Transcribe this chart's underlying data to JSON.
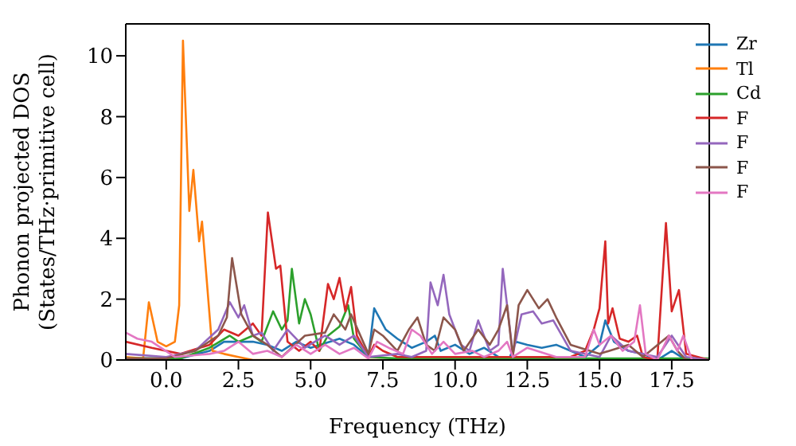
{
  "chart_data": {
    "type": "line",
    "xlabel": "Frequency (THz)",
    "ylabel": "Phonon projected DOS\n(States/THz·primitive cell)",
    "xlim": [
      -1.4,
      18.8
    ],
    "ylim": [
      0,
      11.05
    ],
    "xticks": [
      {
        "value": 0,
        "label": "0.0"
      },
      {
        "value": 2.5,
        "label": "2.5"
      },
      {
        "value": 5,
        "label": "5.0"
      },
      {
        "value": 7.5,
        "label": "7.5"
      },
      {
        "value": 10,
        "label": "10.0"
      },
      {
        "value": 12.5,
        "label": "12.5"
      },
      {
        "value": 15,
        "label": "15.0"
      },
      {
        "value": 17.5,
        "label": "17.5"
      }
    ],
    "yticks": [
      0,
      2,
      4,
      6,
      8,
      10
    ],
    "legend": "top right",
    "marker": "none",
    "line_style": "solid",
    "series": [
      {
        "name": "Zr",
        "color": "#1f77b4",
        "x": [
          -1.4,
          0.5,
          1.5,
          2,
          3,
          3.5,
          4,
          4.5,
          5,
          6,
          6.5,
          7,
          7.2,
          7.6,
          8,
          8.5,
          9,
          9.3,
          9.5,
          10,
          10.5,
          11,
          11.5,
          11.9,
          12.1,
          12.5,
          13,
          13.5,
          14,
          14.5,
          15,
          15.2,
          15.5,
          16,
          16.5,
          17,
          17.5,
          18,
          18.8
        ],
        "values": [
          0.05,
          0.05,
          0.3,
          0.6,
          0.6,
          0.5,
          0.3,
          0.6,
          0.4,
          0.7,
          0.5,
          0.1,
          1.7,
          1.0,
          0.7,
          0.4,
          0.6,
          0.8,
          0.3,
          0.5,
          0.2,
          0.4,
          0.1,
          0.1,
          0.6,
          0.5,
          0.4,
          0.5,
          0.3,
          0.1,
          0.5,
          1.3,
          0.6,
          0.3,
          0.2,
          0,
          0.3,
          0,
          0
        ]
      },
      {
        "name": "Tl",
        "color": "#ff7f0e",
        "x": [
          -1.4,
          -0.8,
          -0.6,
          -0.3,
          0,
          0.3,
          0.45,
          0.58,
          0.8,
          0.94,
          1.14,
          1.24,
          1.6,
          2,
          2.5,
          3,
          18.8
        ],
        "values": [
          0.1,
          0.05,
          1.9,
          0.6,
          0.45,
          0.6,
          1.8,
          10.5,
          4.9,
          6.25,
          3.9,
          4.55,
          0.3,
          0.2,
          0.1,
          0,
          0
        ]
      },
      {
        "name": "Cd",
        "color": "#2ca02c",
        "x": [
          -1.4,
          0.5,
          1.5,
          2.2,
          2.5,
          3,
          3.3,
          3.7,
          4,
          4.2,
          4.35,
          4.6,
          4.8,
          5,
          5.3,
          5.6,
          6,
          6.3,
          6.5,
          7,
          8,
          18.8
        ],
        "values": [
          0.05,
          0.05,
          0.4,
          0.8,
          0.6,
          0.8,
          0.6,
          1.6,
          1.0,
          1.3,
          3.0,
          1.2,
          2.0,
          1.5,
          0.3,
          0.8,
          1.1,
          1.8,
          0.7,
          0.1,
          0.05,
          0.05
        ]
      },
      {
        "name": "F",
        "color": "#d62728",
        "x": [
          -1.4,
          -0.5,
          0.5,
          1.5,
          2,
          2.5,
          3,
          3.3,
          3.52,
          3.8,
          3.95,
          4.2,
          4.6,
          5,
          5.3,
          5.6,
          5.8,
          6,
          6.2,
          6.4,
          6.6,
          7,
          7.2,
          7.5,
          8,
          14,
          14.5,
          14.8,
          15,
          15.2,
          15.3,
          15.45,
          15.7,
          16,
          16.3,
          16.5,
          17,
          17.3,
          17.5,
          17.75,
          18,
          18.8
        ],
        "values": [
          0.6,
          0.4,
          0.2,
          0.5,
          1.0,
          0.8,
          1.2,
          0.8,
          4.85,
          3.0,
          3.1,
          0.6,
          0.3,
          0.6,
          0.3,
          2.5,
          2.0,
          2.7,
          1.6,
          2.4,
          0.8,
          0.1,
          0.5,
          0.3,
          0.1,
          0.1,
          0.3,
          1.0,
          1.7,
          3.9,
          1.2,
          1.7,
          0.7,
          0.6,
          0.8,
          0.1,
          0,
          4.5,
          1.6,
          2.3,
          0.2,
          0
        ]
      },
      {
        "name": "F",
        "color": "#9467bd",
        "x": [
          -1.4,
          0,
          1,
          1.8,
          2.2,
          2.5,
          2.7,
          3,
          3.3,
          3.7,
          4.2,
          4.8,
          5.5,
          6,
          6.5,
          7,
          8,
          8.5,
          9,
          9.15,
          9.4,
          9.6,
          9.8,
          10.2,
          10.5,
          10.8,
          11,
          11.2,
          11.5,
          11.65,
          12,
          12.3,
          12.7,
          13,
          13.4,
          13.7,
          14,
          15,
          15.4,
          16,
          17,
          17.5,
          18,
          18.8
        ],
        "values": [
          0.2,
          0.1,
          0.3,
          1.0,
          1.9,
          1.4,
          1.8,
          0.8,
          0.9,
          0.3,
          1.0,
          0.4,
          0.8,
          0.5,
          0.8,
          0.1,
          0.2,
          0.1,
          0.3,
          2.55,
          1.8,
          2.8,
          1.5,
          0.5,
          0.3,
          1.3,
          0.8,
          0.3,
          0.5,
          3.0,
          0.2,
          1.5,
          1.6,
          1.2,
          1.3,
          0.8,
          0.3,
          0.1,
          0.8,
          0.3,
          0.1,
          0.8,
          0.1,
          0
        ]
      },
      {
        "name": "F",
        "color": "#8c564b",
        "x": [
          -1.4,
          0,
          1,
          1.8,
          2.1,
          2.28,
          2.6,
          3,
          3.5,
          4,
          4.8,
          5.5,
          5.8,
          6.2,
          6.4,
          7,
          7.2,
          7.5,
          8,
          8.4,
          8.7,
          9,
          9.3,
          9.6,
          10,
          10.3,
          10.8,
          11.2,
          11.5,
          11.8,
          12,
          12.2,
          12.5,
          12.9,
          13.2,
          13.5,
          14,
          15,
          16,
          16.5,
          17.4,
          17.7,
          18,
          18.8
        ],
        "values": [
          0.05,
          0.05,
          0.3,
          0.8,
          1.4,
          3.35,
          1.5,
          0.8,
          0.5,
          0.1,
          0.8,
          0.9,
          1.5,
          1.0,
          1.5,
          0.2,
          1.0,
          0.8,
          0.3,
          1.0,
          1.4,
          0.5,
          0.3,
          1.4,
          1.0,
          0.3,
          1.0,
          0.5,
          1.0,
          1.8,
          0.1,
          1.8,
          2.3,
          1.7,
          2.0,
          1.4,
          0.5,
          0.2,
          0.5,
          0.1,
          0.8,
          0.3,
          0,
          0
        ]
      },
      {
        "name": "F",
        "color": "#e377c2",
        "x": [
          -1.4,
          -1,
          -0.5,
          0.3,
          1.5,
          2,
          2.5,
          3,
          3.5,
          4,
          4.5,
          5,
          5.5,
          6,
          6.5,
          7,
          7.3,
          7.7,
          8.2,
          8.5,
          8.8,
          9.2,
          9.6,
          10,
          10.6,
          11,
          11.5,
          11.8,
          12,
          12.5,
          13.5,
          14.5,
          14.8,
          15,
          15.4,
          15.8,
          16.2,
          16.4,
          16.6,
          17,
          17.4,
          17.7,
          17.9,
          18.2,
          18.8
        ],
        "values": [
          0.9,
          0.7,
          0.6,
          0.1,
          0.2,
          0.3,
          0.6,
          0.2,
          0.3,
          0.1,
          0.5,
          0.2,
          0.5,
          0.2,
          0.4,
          0.05,
          0.6,
          0.4,
          0.2,
          1.0,
          0.8,
          0.2,
          0.6,
          0.2,
          0.3,
          0.1,
          0.3,
          0.6,
          0.1,
          0.4,
          0.1,
          0.1,
          1.0,
          0.5,
          0.8,
          0.3,
          0.6,
          1.8,
          0.2,
          0,
          0.8,
          0.3,
          0.8,
          0,
          0
        ]
      }
    ]
  }
}
